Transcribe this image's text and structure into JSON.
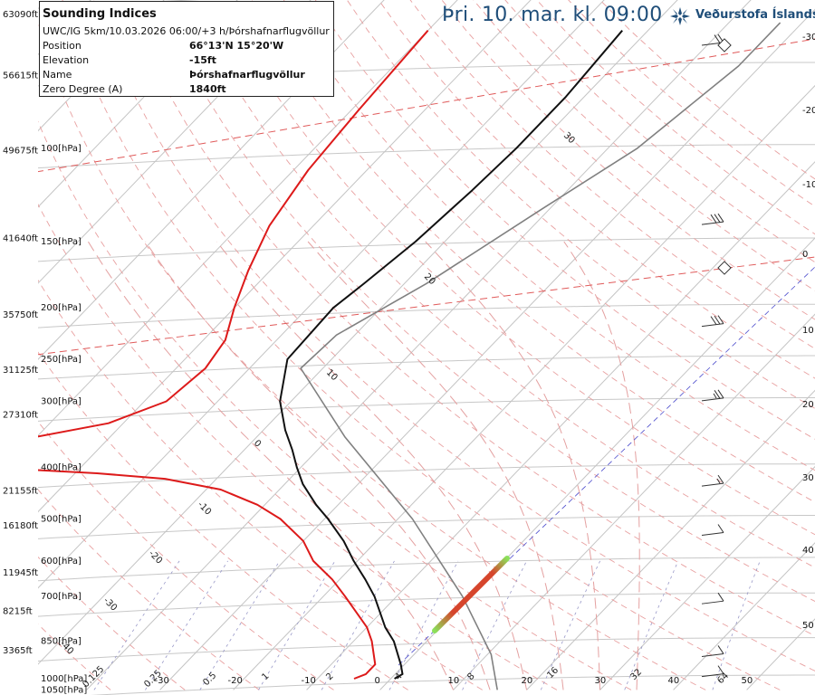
{
  "header": {
    "title": "Þri. 10. mar. kl. 09:00",
    "brand": "Veðurstofa Íslands"
  },
  "info": {
    "title": "Sounding Indices",
    "subtitle": "UWC/IG 5km/10.03.2026 06:00/+3 h/Þórshafnarflugvöllur",
    "rows": [
      {
        "label": "Position",
        "value": "66°13'N 15°20'W"
      },
      {
        "label": "Elevation",
        "value": "-15ft"
      },
      {
        "label": "Name",
        "value": "Þórshafnarflugvöllur"
      },
      {
        "label": "Zero Degree (A)",
        "value": "1840ft"
      }
    ]
  },
  "colors": {
    "temperature": "#111111",
    "dewpoint": "#dd1a1a",
    "parcel": "#808080",
    "isotherm": "#c4c4c4",
    "isobar": "#c8c8c8",
    "dry_adiabat": "#e8a0a0",
    "moist_adiabat": "#e4a0a0",
    "mixing_ratio": "#9898c8",
    "title": "#1f4e79"
  },
  "chart_data": {
    "type": "line",
    "title": "Þri. 10. mar. kl. 09:00",
    "xlabel": "",
    "ylabel": "",
    "y_scale": "log-pressure",
    "pressure_ticks": [
      {
        "p": 100,
        "label": "100[hPa]"
      },
      {
        "p": 150,
        "label": "150[hPa]"
      },
      {
        "p": 200,
        "label": "200[hPa]"
      },
      {
        "p": 250,
        "label": "250[hPa]"
      },
      {
        "p": 300,
        "label": "300[hPa]"
      },
      {
        "p": 400,
        "label": "400[hPa]"
      },
      {
        "p": 500,
        "label": "500[hPa]"
      },
      {
        "p": 600,
        "label": "600[hPa]"
      },
      {
        "p": 700,
        "label": "700[hPa]"
      },
      {
        "p": 850,
        "label": "850[hPa]"
      },
      {
        "p": 1000,
        "label": "1000[hPa]"
      },
      {
        "p": 1050,
        "label": "1050[hPa]"
      }
    ],
    "height_ticks": [
      {
        "p": 56,
        "label": "63090ft"
      },
      {
        "p": 73,
        "label": "56615ft"
      },
      {
        "p": 101,
        "label": "49675ft"
      },
      {
        "p": 148,
        "label": "41640ft"
      },
      {
        "p": 206,
        "label": "35750ft"
      },
      {
        "p": 262,
        "label": "31125ft"
      },
      {
        "p": 318,
        "label": "27310ft"
      },
      {
        "p": 443,
        "label": "21155ft"
      },
      {
        "p": 515,
        "label": "16180ft"
      },
      {
        "p": 632,
        "label": "11945ft"
      },
      {
        "p": 747,
        "label": "8215ft"
      },
      {
        "p": 885,
        "label": "3365ft"
      }
    ],
    "x_ticks": [
      -30,
      -20,
      -10,
      0,
      10,
      20,
      30,
      40,
      50
    ],
    "right_ticks": [
      -30,
      -20,
      -10,
      0,
      10,
      20,
      30,
      40,
      50
    ],
    "isotherm_labels": [
      30,
      20,
      10,
      0,
      -10,
      -20,
      -30,
      -40
    ],
    "mixing_ratio_labels": [
      "0.125",
      "0.25",
      "0.5",
      "1",
      "2",
      "4",
      "8",
      "16",
      "32",
      "64"
    ],
    "series": [
      {
        "key": "temperature",
        "points": [
          [
            1000,
            0.5
          ],
          [
            980,
            1
          ],
          [
            940,
            -0.5
          ],
          [
            850,
            -4.5
          ],
          [
            800,
            -7.5
          ],
          [
            700,
            -13
          ],
          [
            650,
            -16.5
          ],
          [
            600,
            -20.5
          ],
          [
            550,
            -24.5
          ],
          [
            500,
            -29.5
          ],
          [
            470,
            -33
          ],
          [
            430,
            -37.5
          ],
          [
            400,
            -40.5
          ],
          [
            370,
            -43.5
          ],
          [
            340,
            -47
          ],
          [
            300,
            -51.5
          ],
          [
            250,
            -56
          ],
          [
            200,
            -56.5
          ],
          [
            180,
            -55.5
          ],
          [
            150,
            -54
          ],
          [
            120,
            -53
          ],
          [
            100,
            -52.5
          ],
          [
            80,
            -52.5
          ],
          [
            60,
            -53.5
          ]
        ]
      },
      {
        "key": "dewpoint",
        "points": [
          [
            1000,
            -5
          ],
          [
            980,
            -4
          ],
          [
            940,
            -4
          ],
          [
            850,
            -7.5
          ],
          [
            800,
            -10
          ],
          [
            700,
            -17
          ],
          [
            650,
            -21
          ],
          [
            600,
            -26
          ],
          [
            550,
            -30
          ],
          [
            500,
            -36
          ],
          [
            470,
            -41
          ],
          [
            440,
            -48
          ],
          [
            420,
            -57
          ],
          [
            410,
            -67
          ],
          [
            400,
            -82
          ]
        ]
      },
      {
        "key": "dewpoint_upper",
        "points": [
          [
            355,
            -82
          ],
          [
            330,
            -72
          ],
          [
            300,
            -67
          ],
          [
            260,
            -66
          ],
          [
            230,
            -67
          ],
          [
            200,
            -70
          ],
          [
            170,
            -73
          ],
          [
            140,
            -76
          ],
          [
            110,
            -78
          ],
          [
            85,
            -79
          ],
          [
            60,
            -80
          ]
        ]
      },
      {
        "key": "parcel",
        "points": [
          [
            1050,
            16
          ],
          [
            900,
            10.5
          ],
          [
            700,
            -1
          ],
          [
            500,
            -18
          ],
          [
            350,
            -38
          ],
          [
            260,
            -53
          ],
          [
            225,
            -52.5
          ],
          [
            180,
            -47
          ],
          [
            130,
            -41
          ],
          [
            100,
            -36
          ],
          [
            70,
            -33
          ],
          [
            58,
            -33
          ]
        ]
      }
    ],
    "wind_barbs": [
      {
        "p": 62,
        "speed_kt": 20
      },
      {
        "p": 135,
        "speed_kt": 30
      },
      {
        "p": 210,
        "speed_kt": 30
      },
      {
        "p": 290,
        "speed_kt": 25
      },
      {
        "p": 420,
        "speed_kt": 15
      },
      {
        "p": 520,
        "speed_kt": 10
      },
      {
        "p": 700,
        "speed_kt": 10
      },
      {
        "p": 880,
        "speed_kt": 10
      },
      {
        "p": 960,
        "speed_kt": 10
      }
    ]
  }
}
